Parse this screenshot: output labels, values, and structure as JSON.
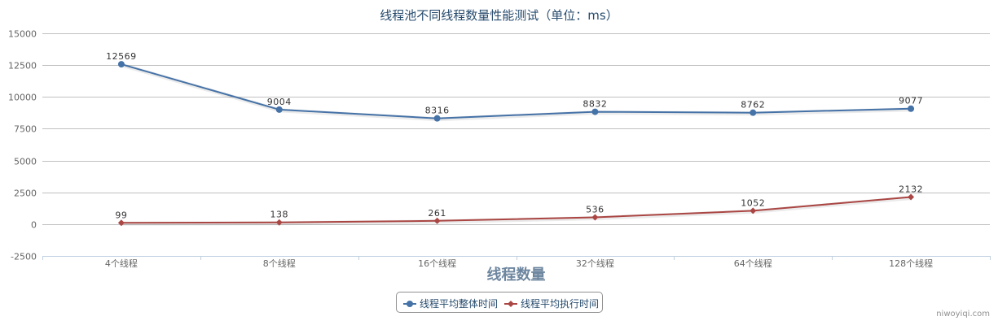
{
  "chart_data": {
    "type": "line",
    "title": "线程池不同线程数量性能测试（单位：ms）",
    "xlabel": "线程数量",
    "ylabel": "",
    "categories": [
      "4个线程",
      "8个线程",
      "16个线程",
      "32个线程",
      "64个线程",
      "128个线程"
    ],
    "ylim": [
      -2500,
      15000
    ],
    "yticks": [
      -2500,
      0,
      2500,
      5000,
      7500,
      10000,
      12500,
      15000
    ],
    "grid": true,
    "legend_position": "bottom-center",
    "series": [
      {
        "name": "线程平均整体时间",
        "values": [
          12569,
          9004,
          8316,
          8832,
          8762,
          9077
        ],
        "color": "#4572A7",
        "marker": "circle"
      },
      {
        "name": "线程平均执行时间",
        "values": [
          99,
          138,
          261,
          536,
          1052,
          2132
        ],
        "color": "#AA4643",
        "marker": "diamond"
      }
    ]
  },
  "credit": "niwoyiqi.com"
}
